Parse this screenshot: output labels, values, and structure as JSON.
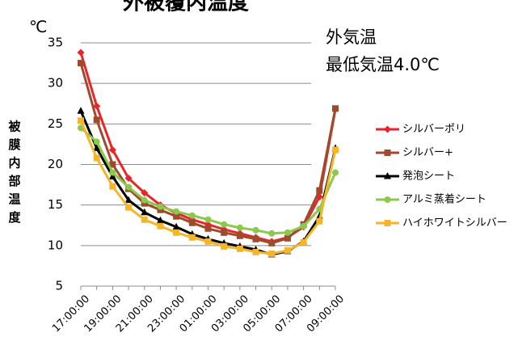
{
  "chart_data": {
    "type": "line",
    "title": "外被覆内温度",
    "unit_label": "℃",
    "ylabel": "被膜内部温度",
    "annotation": [
      "外気温",
      "最低気温4.0℃"
    ],
    "ylim": [
      5,
      35
    ],
    "yticks": [
      5,
      10,
      15,
      20,
      25,
      30,
      35
    ],
    "x": [
      "17:00:00",
      "18:00:00",
      "19:00:00",
      "20:00:00",
      "21:00:00",
      "22:00:00",
      "23:00:00",
      "00:00:00",
      "01:00:00",
      "02:00:00",
      "03:00:00",
      "04:00:00",
      "05:00:00",
      "06:00:00",
      "07:00:00",
      "08:00:00",
      "09:00:00"
    ],
    "xtick_labels": [
      "17:00:00",
      "19:00:00",
      "21:00:00",
      "23:00:00",
      "01:00:00",
      "03:00:00",
      "05:00:00",
      "07:00:00",
      "09:00:00"
    ],
    "xtick_indices": [
      0,
      2,
      4,
      6,
      8,
      10,
      12,
      14,
      16
    ],
    "legend_position": "right",
    "series": [
      {
        "name": "シルバーポリ",
        "color": "#e8262a",
        "marker": "diamond",
        "values": [
          33.8,
          27.2,
          21.8,
          18.3,
          16.5,
          15.0,
          14.0,
          13.2,
          12.6,
          12.0,
          11.5,
          11.0,
          10.5,
          11.0,
          12.3,
          16.0,
          26.8
        ]
      },
      {
        "name": "シルバー+",
        "color": "#9e4a2c",
        "marker": "square",
        "values": [
          32.5,
          25.5,
          20.0,
          17.0,
          15.2,
          14.4,
          13.6,
          12.8,
          12.1,
          11.6,
          11.2,
          10.8,
          10.3,
          10.9,
          12.6,
          16.8,
          26.9
        ]
      },
      {
        "name": "発泡シート",
        "color": "#000000",
        "marker": "triangle",
        "values": [
          26.6,
          22.0,
          18.5,
          15.6,
          14.1,
          13.1,
          12.3,
          11.4,
          10.8,
          10.3,
          9.9,
          9.5,
          8.9,
          9.3,
          10.5,
          13.6,
          22.0
        ]
      },
      {
        "name": "アルミ蒸着シート",
        "color": "#8cc84b",
        "marker": "circle",
        "values": [
          24.5,
          22.8,
          19.0,
          17.2,
          15.6,
          14.8,
          14.2,
          13.7,
          13.2,
          12.6,
          12.2,
          11.9,
          11.5,
          11.6,
          12.4,
          14.5,
          19.0
        ]
      },
      {
        "name": "ハイホワイトシルバー",
        "color": "#f5b52a",
        "marker": "square",
        "values": [
          25.4,
          20.8,
          17.3,
          14.7,
          13.2,
          12.4,
          11.6,
          11.0,
          10.5,
          9.9,
          9.6,
          9.2,
          9.0,
          9.4,
          10.4,
          13.0,
          21.8
        ]
      }
    ]
  }
}
